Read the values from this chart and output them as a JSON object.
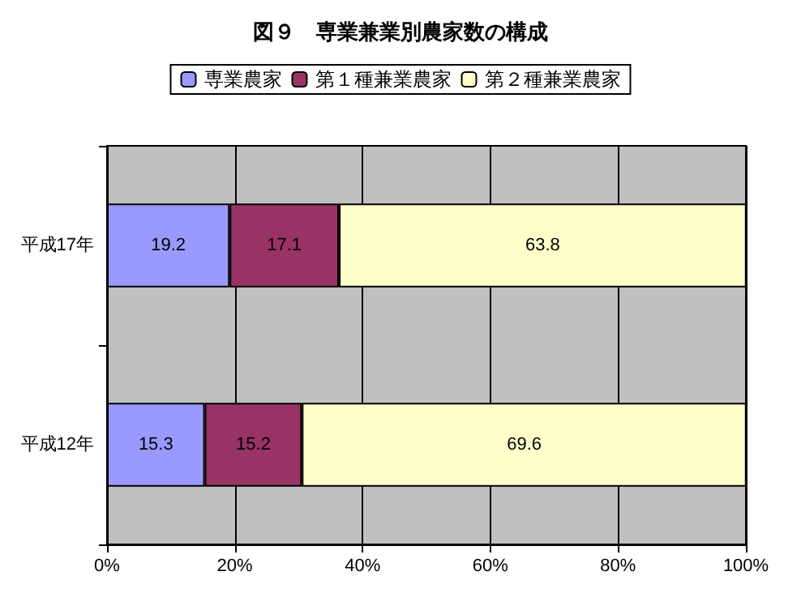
{
  "chart_data": {
    "type": "bar",
    "title": "図９　専業兼業別農家数の構成",
    "orientation": "horizontal",
    "stacked": true,
    "categories": [
      "平成17年",
      "平成12年"
    ],
    "series": [
      {
        "name": "専業農家",
        "color": "#9999ff",
        "values": [
          19.2,
          15.3
        ]
      },
      {
        "name": "第１種兼業農家",
        "color": "#993366",
        "values": [
          17.1,
          15.2
        ]
      },
      {
        "name": "第２種兼業農家",
        "color": "#ffffcc",
        "values": [
          63.8,
          69.6
        ]
      }
    ],
    "xlim": [
      0,
      100
    ],
    "xticks": [
      {
        "value": 0,
        "label": "0%"
      },
      {
        "value": 20,
        "label": "20%"
      },
      {
        "value": 40,
        "label": "40%"
      },
      {
        "value": 60,
        "label": "60%"
      },
      {
        "value": 80,
        "label": "80%"
      },
      {
        "value": 100,
        "label": "100%"
      }
    ],
    "grid": "x",
    "legend": "top",
    "data_labels": true
  }
}
